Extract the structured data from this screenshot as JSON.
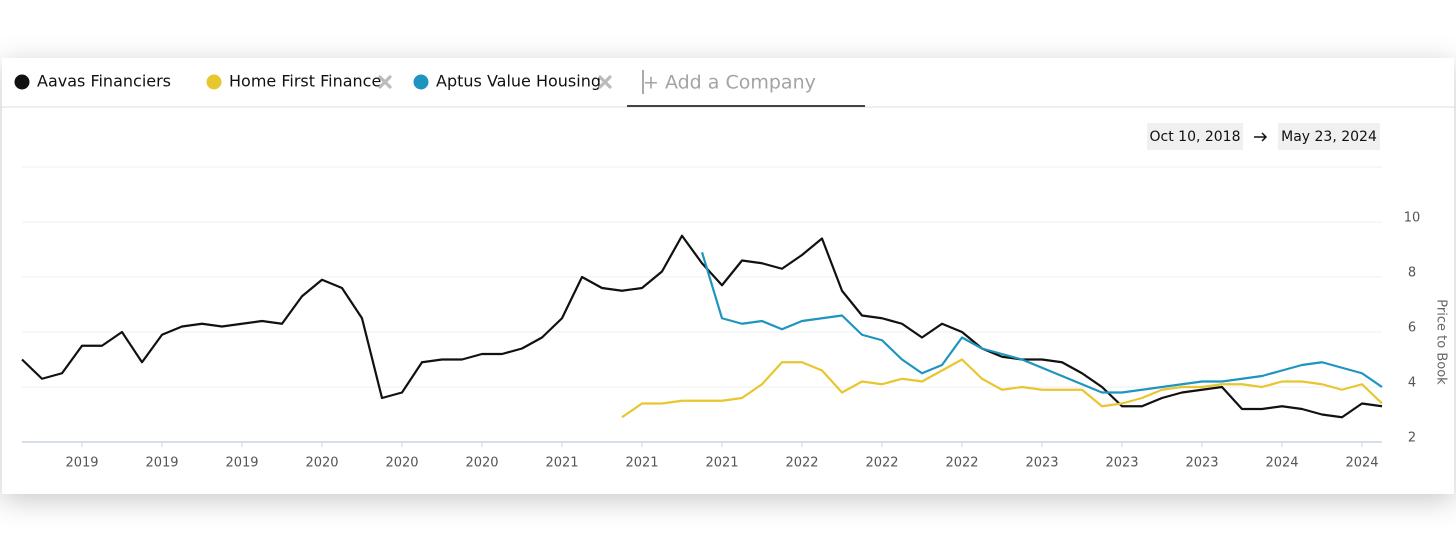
{
  "add_company": "+ Add a Company",
  "date_range": {
    "start": "Oct 10, 2018",
    "end": "May 23, 2024"
  },
  "chart_data": {
    "type": "line",
    "y_axis_label": "Price to Book",
    "categories": [
      null,
      null,
      null,
      "2019",
      null,
      null,
      null,
      "2019",
      null,
      null,
      null,
      "2019",
      null,
      null,
      null,
      "2020",
      null,
      null,
      null,
      "2020",
      null,
      null,
      null,
      "2020",
      null,
      null,
      null,
      "2021",
      null,
      null,
      null,
      "2021",
      null,
      null,
      null,
      "2021",
      null,
      null,
      null,
      "2022",
      null,
      null,
      null,
      "2022",
      null,
      null,
      null,
      "2022",
      null,
      null,
      null,
      "2023",
      null,
      null,
      null,
      "2023",
      null,
      null,
      null,
      "2023",
      null,
      null,
      null,
      "2024",
      null,
      null,
      null,
      "2024",
      null
    ],
    "series": [
      {
        "name": "Aavas Financiers",
        "color": "#111111",
        "removable": false,
        "values": [
          5.0,
          4.3,
          4.5,
          5.5,
          5.5,
          6.0,
          4.9,
          5.9,
          6.2,
          6.3,
          6.2,
          6.3,
          6.4,
          6.3,
          7.3,
          7.9,
          7.6,
          6.5,
          3.6,
          3.8,
          4.9,
          5.0,
          5.0,
          5.2,
          5.2,
          5.4,
          5.8,
          6.5,
          8.0,
          7.6,
          7.5,
          7.6,
          8.2,
          9.5,
          8.5,
          7.7,
          8.6,
          8.5,
          8.3,
          8.8,
          9.4,
          7.5,
          6.6,
          6.5,
          6.3,
          5.8,
          6.3,
          6.0,
          5.4,
          5.1,
          5.0,
          5.0,
          4.9,
          4.5,
          4.0,
          3.3,
          3.3,
          3.6,
          3.8,
          3.9,
          4.0,
          3.2,
          3.2,
          3.3,
          3.2,
          3.0,
          2.9,
          3.4,
          3.3
        ]
      },
      {
        "name": "Home First Finance",
        "color": "#e8c62e",
        "removable": true,
        "values": [
          null,
          null,
          null,
          null,
          null,
          null,
          null,
          null,
          null,
          null,
          null,
          null,
          null,
          null,
          null,
          null,
          null,
          null,
          null,
          null,
          null,
          null,
          null,
          null,
          null,
          null,
          null,
          null,
          null,
          null,
          2.9,
          3.4,
          3.4,
          3.5,
          3.5,
          3.5,
          3.6,
          4.1,
          4.9,
          4.9,
          4.6,
          3.8,
          4.2,
          4.1,
          4.3,
          4.2,
          4.6,
          5.0,
          4.3,
          3.9,
          4.0,
          3.9,
          3.9,
          3.9,
          3.3,
          3.4,
          3.6,
          3.9,
          4.0,
          4.0,
          4.1,
          4.1,
          4.0,
          4.2,
          4.2,
          4.1,
          3.9,
          4.1,
          3.4
        ]
      },
      {
        "name": "Aptus Value Housing",
        "color": "#1e95c0",
        "removable": true,
        "values": [
          null,
          null,
          null,
          null,
          null,
          null,
          null,
          null,
          null,
          null,
          null,
          null,
          null,
          null,
          null,
          null,
          null,
          null,
          null,
          null,
          null,
          null,
          null,
          null,
          null,
          null,
          null,
          null,
          null,
          null,
          null,
          null,
          null,
          null,
          8.9,
          6.5,
          6.3,
          6.4,
          6.1,
          6.4,
          6.5,
          6.6,
          5.9,
          5.7,
          5.0,
          4.5,
          4.8,
          5.8,
          5.4,
          5.2,
          5.0,
          4.7,
          4.4,
          4.1,
          3.8,
          3.8,
          3.9,
          4.0,
          4.1,
          4.2,
          4.2,
          4.3,
          4.4,
          4.6,
          4.8,
          4.9,
          4.7,
          4.5,
          4.0
        ]
      }
    ],
    "ylim": [
      2,
      12
    ],
    "yticks": [
      2,
      4,
      6,
      8,
      10
    ],
    "grid": true
  }
}
